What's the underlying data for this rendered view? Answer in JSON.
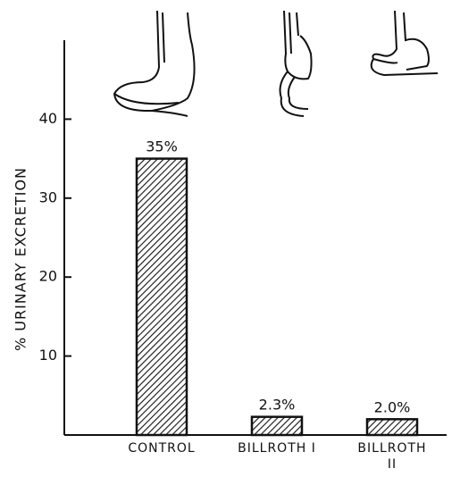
{
  "chart_data": {
    "type": "bar",
    "y_label": "% URINARY EXCRETION",
    "categories": [
      "CONTROL",
      "BILLROTH I",
      "BILLROTH II"
    ],
    "values": [
      35,
      2.3,
      2.0
    ],
    "value_labels": [
      "35%",
      "2.3%",
      "2.0%"
    ],
    "color": "#111111",
    "ylim": [
      0,
      50
    ],
    "yticks": [
      10,
      20,
      30,
      40
    ],
    "grid": false
  }
}
